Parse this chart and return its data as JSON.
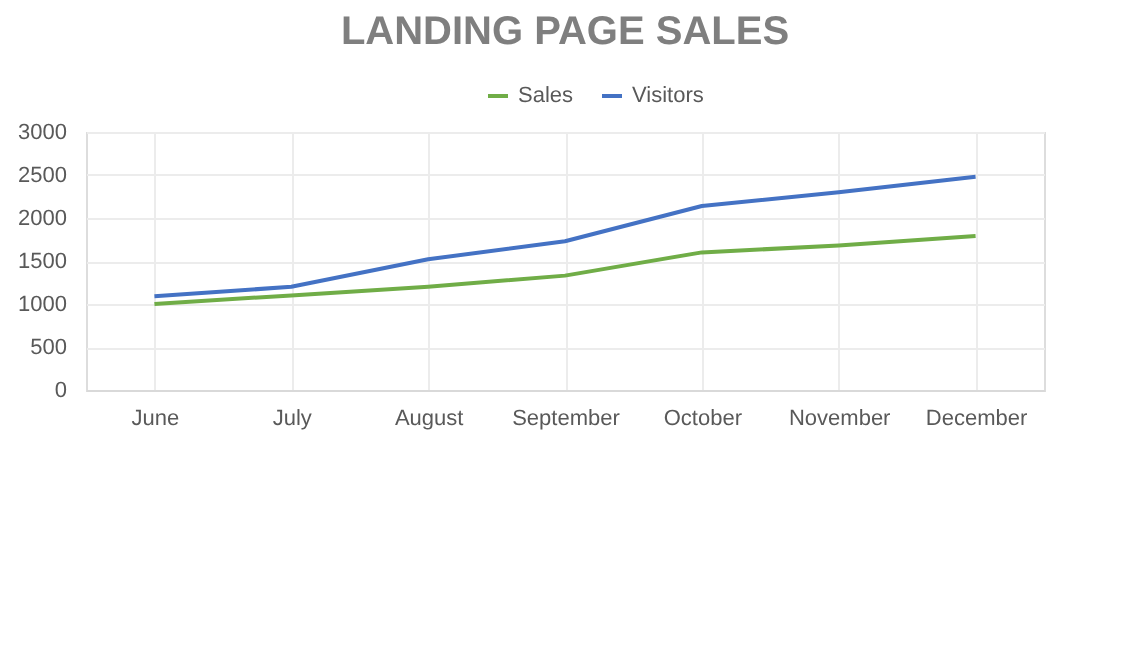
{
  "chart_data": {
    "type": "line",
    "title": "LANDING PAGE SALES",
    "categories": [
      "June",
      "July",
      "August",
      "September",
      "October",
      "November",
      "December"
    ],
    "series": [
      {
        "name": "Sales",
        "color": "#70ad47",
        "values": [
          1000,
          1100,
          1200,
          1330,
          1600,
          1680,
          1790
        ]
      },
      {
        "name": "Visitors",
        "color": "#4472c4",
        "values": [
          1090,
          1200,
          1520,
          1730,
          2140,
          2300,
          2480
        ]
      }
    ],
    "ylim": [
      0,
      3000
    ],
    "yticks": [
      0,
      500,
      1000,
      1500,
      2000,
      2500,
      3000
    ],
    "grid": true,
    "legend": "top",
    "marker": "none",
    "line_style": "solid"
  }
}
